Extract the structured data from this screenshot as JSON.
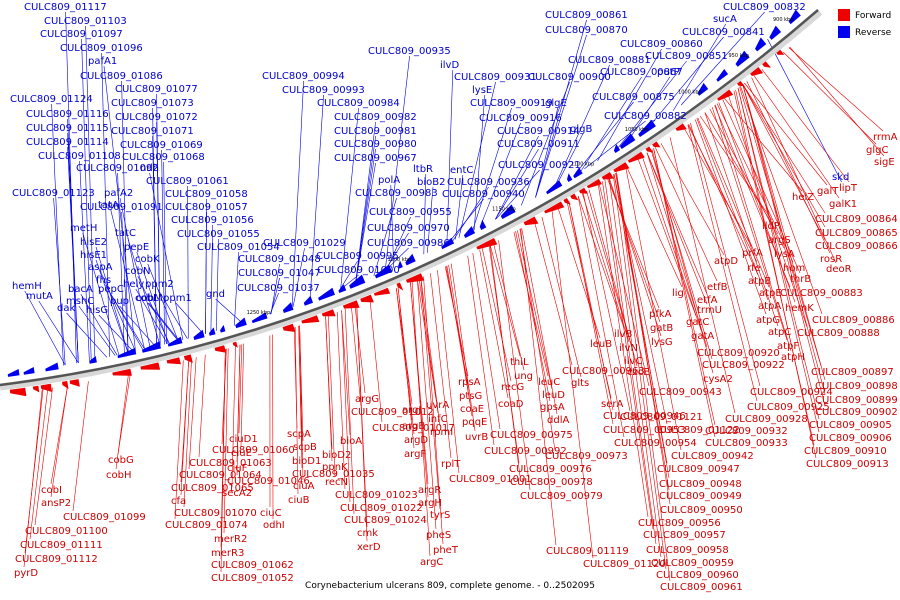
{
  "title": "Corynebacterium ulcerans 809, complete genome. - 0..2502095",
  "legend": [
    {
      "label": "Forward",
      "color": "#ee0000"
    },
    {
      "label": "Reverse",
      "color": "#0000ee"
    }
  ],
  "ticks": [
    "900 kbp",
    "950 kbp",
    "1000 kbp",
    "1050 kbp",
    "1100 kbp",
    "1150 kbp",
    "1200 kbp",
    "1250 kbp"
  ],
  "reverse_genes": [
    "CULC809_01117",
    "CULC809_01103",
    "CULC809_01097",
    "CULC809_01096",
    "pafA1",
    "CULC809_01086",
    "CULC809_01077",
    "CULC809_01124",
    "CULC809_01073",
    "CULC809_01116",
    "CULC809_01072",
    "CULC809_01115",
    "CULC809_01071",
    "CULC809_01114",
    "CULC809_01069",
    "CULC809_01108",
    "CULC809_01068",
    "CULC809_01092",
    "ndh",
    "CULC809_01061",
    "CULC809_01123",
    "CULC809_01058",
    "pafA2",
    "CULC809_01091",
    "CULC809_01057",
    "tatA",
    "CULC809_01056",
    "metH",
    "tatC",
    "CULC809_01055",
    "hisE2",
    "pepE",
    "CULC809_01054",
    "hisE1",
    "cobK",
    "CULC809_01048",
    "aspA",
    "cobN",
    "CULC809_01047",
    "fhs",
    "hely",
    "ppm2",
    "bacA",
    "pepC",
    "cobL",
    "mshC",
    "pup",
    "cobM",
    "ppm1",
    "gnd",
    "hemH",
    "mutA",
    "dak",
    "hisG",
    "CULC809_01029",
    "CULC809_01000",
    "CULC809_01037",
    "CULC809_00994",
    "CULC809_00993",
    "CULC809_00984",
    "CULC809_00982",
    "CULC809_00981",
    "CULC809_00980",
    "CULC809_00967",
    "polA",
    "CULC809_00983",
    "CULC809_00970",
    "CULC809_00955",
    "CULC809_00986",
    "CULC809_00995",
    "ltbR",
    "bioB2",
    "entC",
    "CULC809_00936",
    "CULC809_00940",
    "CULC809_00935",
    "ilvD",
    "CULC809_00931",
    "lysE",
    "CULC809_00919",
    "CULC809_00916",
    "CULC809_00914",
    "CULC809_00911",
    "CULC809_00921",
    "CULC809_00900",
    "glgE",
    "CULC809_00882",
    "glgB",
    "CULC809_00875",
    "CULC809_00881",
    "CULC809_00867",
    "putP",
    "CULC809_00851",
    "CULC809_00860",
    "CULC809_00870",
    "CULC809_00861",
    "CULC809_00841",
    "sucA",
    "CULC809_00832",
    "skd"
  ],
  "forward_genes": [
    "rrmA",
    "glgC",
    "sigE",
    "lipT",
    "galT",
    "galK1",
    "helZ",
    "CULC809_00864",
    "CULC809_00865",
    "CULC809_00866",
    "lldP",
    "argS",
    "rosR",
    "prfA",
    "lysA",
    "deoR",
    "rfe",
    "hom",
    "atpD",
    "atpB",
    "thrB",
    "CULC809_00883",
    "atpE",
    "hemK",
    "atpA",
    "atpG",
    "CULC809_00886",
    "atpC",
    "CULC809_00888",
    "atpF",
    "atpH",
    "etfB",
    "etfA",
    "trmU",
    "lig",
    "gatC",
    "pfkA",
    "gatA",
    "gatB",
    "lysG",
    "ilvB",
    "ilvN",
    "leuB",
    "ilvC",
    "czcE",
    "CULC809_00920",
    "CULC809_00922",
    "cysA2",
    "CULC809_00897",
    "CULC809_00898",
    "CULC809_00899",
    "CULC809_00902",
    "CULC809_00905",
    "CULC809_00906",
    "CULC809_00910",
    "CULC809_00913",
    "CULC809_00924",
    "CULC809_00925",
    "CULC809_00928",
    "CULC809_00932",
    "CULC809_00933",
    "CULC809_00942",
    "CULC809_00943",
    "serA",
    "CULC809_00946",
    "CULC809_00953",
    "CULC809_00954",
    "glts",
    "CULC809_00963",
    "thiL",
    "ung",
    "leuC",
    "leuD",
    "gpsA",
    "ddlA",
    "CULC809_00973",
    "CULC809_00947",
    "CULC809_00948",
    "CULC809_00949",
    "CULC809_00950",
    "CULC809_00956",
    "CULC809_00957",
    "CULC809_00958",
    "CULC809_00959",
    "CULC809_00960",
    "CULC809_00961",
    "recG",
    "coaD",
    "CULC809_00975",
    "CULC809_00976",
    "CULC809_00978",
    "CULC809_00979",
    "rpsA",
    "ptsG",
    "coaE",
    "pqqE",
    "uvrB",
    "CULC809_00992",
    "uvrA",
    "infC",
    "rpmI",
    "rplT",
    "CULC809_01001",
    "argJ",
    "argB",
    "argD",
    "argF",
    "argR",
    "argH",
    "tyrS",
    "pheS",
    "pheT",
    "argC",
    "argG",
    "CULC809_01012",
    "CULC809_01017",
    "bioA",
    "bioD2",
    "ppnK",
    "recN",
    "CULC809_01023",
    "CULC809_01022",
    "CULC809_01024",
    "cmk",
    "xerD",
    "scpA",
    "scpB",
    "bioD1",
    "CULC809_01035",
    "ciuA",
    "ciuB",
    "ciuC",
    "ciuD1",
    "ciuE",
    "ciuF",
    "CULC809_01046",
    "secA2",
    "odhI",
    "merR2",
    "merR3",
    "CULC809_01062",
    "CULC809_01052",
    "CULC809_01060",
    "CULC809_01063",
    "CULC809_01064",
    "CULC809_01065",
    "cfa",
    "CULC809_01070",
    "CULC809_01074",
    "cobG",
    "cobH",
    "cobI",
    "ansP2",
    "CULC809_01099",
    "CULC809_01100",
    "CULC809_01111",
    "CULC809_01112",
    "pyrD",
    "CULC809_01119",
    "CULC809_01120",
    "CULC809_01121",
    "CULC809_01122"
  ]
}
